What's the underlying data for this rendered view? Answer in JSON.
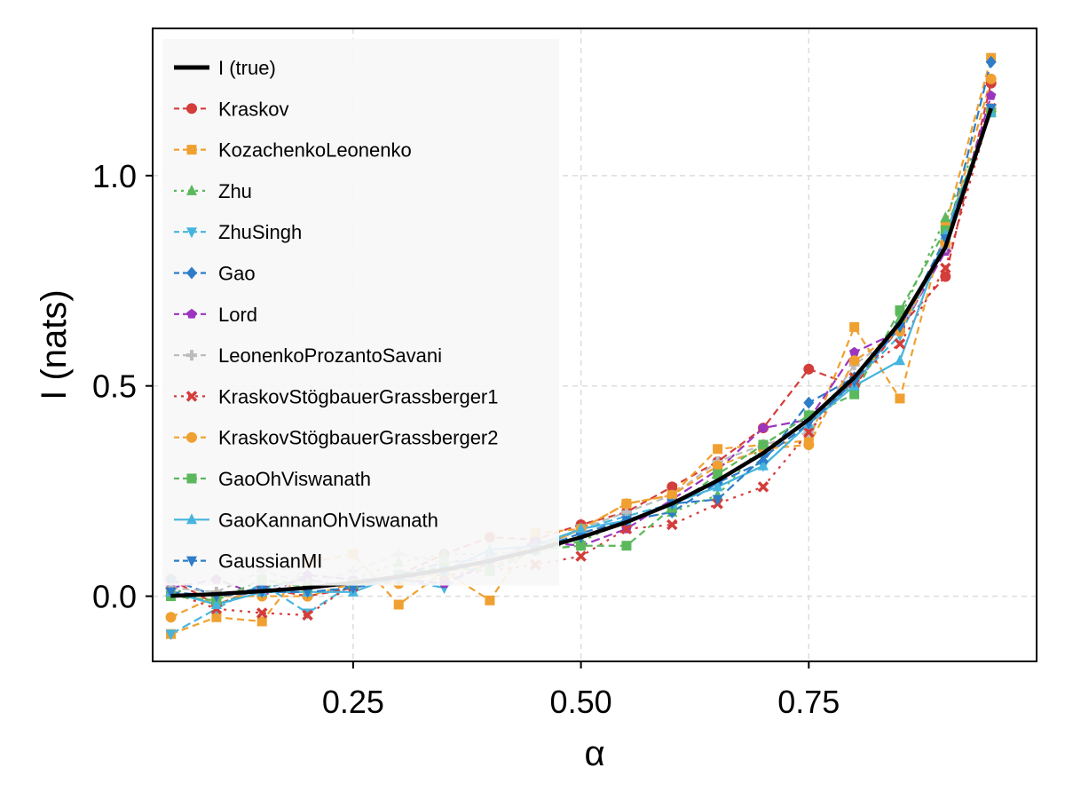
{
  "chart_data": {
    "type": "line",
    "xlabel": "α",
    "ylabel": "I (nats)",
    "xlim": [
      0.03,
      1.0
    ],
    "ylim": [
      -0.155,
      1.35
    ],
    "xticks": [
      0.25,
      0.5,
      0.75
    ],
    "xtick_labels": [
      "0.25",
      "0.50",
      "0.75"
    ],
    "yticks": [
      0.0,
      0.5,
      1.0
    ],
    "ytick_labels": [
      "0.0",
      "0.5",
      "1.0"
    ],
    "grid": true,
    "legend_position": "top-left",
    "x": [
      0.05,
      0.1,
      0.15,
      0.2,
      0.25,
      0.3,
      0.35,
      0.4,
      0.45,
      0.5,
      0.55,
      0.6,
      0.65,
      0.7,
      0.75,
      0.8,
      0.85,
      0.9,
      0.95
    ],
    "true_series": {
      "name": "I (true)",
      "color": "#000000",
      "values": [
        0.001,
        0.005,
        0.012,
        0.02,
        0.032,
        0.046,
        0.063,
        0.084,
        0.11,
        0.14,
        0.176,
        0.22,
        0.275,
        0.34,
        0.42,
        0.52,
        0.65,
        0.83,
        1.16
      ]
    },
    "series": [
      {
        "name": "Kraskov",
        "color": "#d33d3a",
        "dash": "8,5",
        "marker": "circle",
        "values": [
          0.04,
          -0.02,
          0.02,
          0.0,
          0.02,
          0.05,
          0.1,
          0.14,
          0.135,
          0.17,
          0.2,
          0.26,
          0.32,
          0.4,
          0.54,
          0.5,
          0.64,
          0.76,
          1.22
        ]
      },
      {
        "name": "KozachenkoLeonenko",
        "color": "#f0a030",
        "dash": "8,5",
        "marker": "square",
        "values": [
          -0.09,
          -0.05,
          -0.06,
          0.08,
          0.1,
          -0.02,
          0.06,
          -0.01,
          0.15,
          0.16,
          0.22,
          0.24,
          0.35,
          0.36,
          0.37,
          0.64,
          0.47,
          0.88,
          1.28
        ]
      },
      {
        "name": "Zhu",
        "color": "#5cb85c",
        "dash": "3,6",
        "marker": "triangle-up",
        "values": [
          0.02,
          -0.02,
          0.02,
          0.05,
          0.04,
          0.08,
          0.1,
          0.1,
          0.11,
          0.13,
          0.18,
          0.2,
          0.24,
          0.36,
          0.43,
          0.5,
          0.66,
          0.9,
          1.15
        ]
      },
      {
        "name": "ZhuSingh",
        "color": "#45b5de",
        "dash": "10,5",
        "marker": "triangle-down",
        "values": [
          -0.09,
          -0.03,
          0.03,
          -0.04,
          0.03,
          0.04,
          0.02,
          0.09,
          0.11,
          0.16,
          0.19,
          0.22,
          0.26,
          0.31,
          0.41,
          0.51,
          0.62,
          0.84,
          1.16
        ]
      },
      {
        "name": "Gao",
        "color": "#2d7dc8",
        "dash": "10,5",
        "marker": "diamond",
        "values": [
          0.04,
          0.0,
          0.02,
          0.04,
          0.02,
          0.05,
          0.08,
          0.09,
          0.11,
          0.15,
          0.18,
          0.2,
          0.27,
          0.32,
          0.46,
          0.52,
          0.64,
          0.84,
          1.27
        ]
      },
      {
        "name": "Lord",
        "color": "#9b35c0",
        "dash": "10,5",
        "marker": "pentagon",
        "values": [
          0.02,
          0.04,
          0.0,
          0.05,
          0.04,
          0.04,
          0.03,
          0.08,
          0.13,
          0.12,
          0.16,
          0.23,
          0.3,
          0.4,
          0.42,
          0.58,
          0.63,
          0.82,
          1.19
        ]
      },
      {
        "name": "LeonenkoProzantoSavani",
        "color": "#bdbdbd",
        "dash": "8,5",
        "marker": "cross",
        "values": [
          0.02,
          0.01,
          0.06,
          0.03,
          0.06,
          0.1,
          0.08,
          0.09,
          0.12,
          0.16,
          0.2,
          0.24,
          0.32,
          0.36,
          0.39,
          0.55,
          0.63,
          0.83,
          1.16
        ]
      },
      {
        "name": "KraskovStögbauerGrassberger1",
        "color": "#d33d3a",
        "dash": "3,6",
        "marker": "x",
        "values": [
          0.01,
          -0.03,
          -0.04,
          -0.045,
          0.03,
          0.05,
          0.05,
          0.06,
          0.075,
          0.095,
          0.16,
          0.17,
          0.22,
          0.26,
          0.39,
          0.52,
          0.6,
          0.78,
          1.16
        ]
      },
      {
        "name": "KraskovStögbauerGrassberger2",
        "color": "#f0a030",
        "dash": "8,5",
        "marker": "circle",
        "values": [
          -0.05,
          0.0,
          0.0,
          0.0,
          0.03,
          0.03,
          0.06,
          0.07,
          0.11,
          0.16,
          0.22,
          0.24,
          0.31,
          0.35,
          0.36,
          0.56,
          0.63,
          0.84,
          1.23
        ]
      },
      {
        "name": "GaoOhViswanath",
        "color": "#5cb85c",
        "dash": "8,5",
        "marker": "square",
        "values": [
          0.0,
          -0.01,
          0.04,
          0.02,
          0.03,
          0.05,
          0.07,
          0.06,
          0.11,
          0.12,
          0.12,
          0.21,
          0.29,
          0.36,
          0.43,
          0.48,
          0.68,
          0.87,
          1.15
        ]
      },
      {
        "name": "GaoKannanOhViswanath",
        "color": "#45b5de",
        "dash": "",
        "marker": "triangle-up",
        "values": [
          0.01,
          -0.02,
          0.01,
          0.01,
          0.01,
          0.05,
          0.06,
          0.11,
          0.12,
          0.16,
          0.18,
          0.22,
          0.26,
          0.31,
          0.41,
          0.5,
          0.56,
          0.86,
          1.15
        ]
      },
      {
        "name": "GaussianMI",
        "color": "#2d7dc8",
        "dash": "10,5",
        "marker": "triangle-down",
        "values": [
          0.01,
          0.0,
          0.01,
          0.01,
          0.02,
          0.04,
          0.06,
          0.08,
          0.11,
          0.14,
          0.18,
          0.22,
          0.23,
          0.33,
          0.41,
          0.51,
          0.64,
          0.85,
          1.16
        ]
      }
    ]
  }
}
